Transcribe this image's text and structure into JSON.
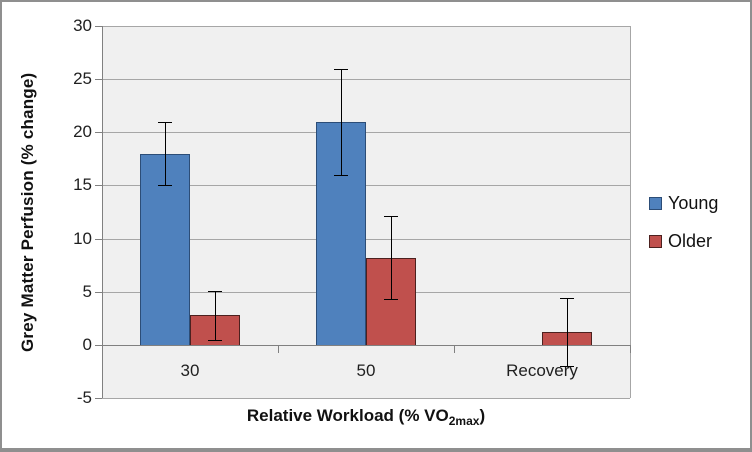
{
  "chart_data": {
    "type": "bar",
    "title": "",
    "categories": [
      "30",
      "50",
      "Recovery"
    ],
    "series": [
      {
        "name": "Young",
        "color": "#4F81BD",
        "border_color": "#2C4D77",
        "values": [
          18,
          21,
          null
        ],
        "error_bars": [
          3,
          5,
          null
        ]
      },
      {
        "name": "Older",
        "color": "#C0504D",
        "border_color": "#4C211F",
        "values": [
          2.8,
          8.2,
          1.2
        ],
        "error_bars": [
          2.3,
          3.9,
          3.2
        ]
      }
    ],
    "xlabel": {
      "prefix": "Relative Workload (% VO",
      "subscript": "2max",
      "suffix": ")"
    },
    "ylabel": "Grey Matter Perfusion (% change)",
    "y_axis": {
      "min": -5,
      "max": 30,
      "step": 5,
      "tick_labels": [
        "30",
        "25",
        "20",
        "15",
        "10",
        "5",
        "0",
        "-5"
      ]
    },
    "legend_position": "right",
    "grid": true,
    "error_bar_color": "#000000",
    "colors": {
      "plot_bg": "#F0F0F0",
      "gridline": "#A6A6A6",
      "axis_line": "#808080",
      "text": "#1f1f1f",
      "frame_border": "#8F8F8F"
    }
  }
}
